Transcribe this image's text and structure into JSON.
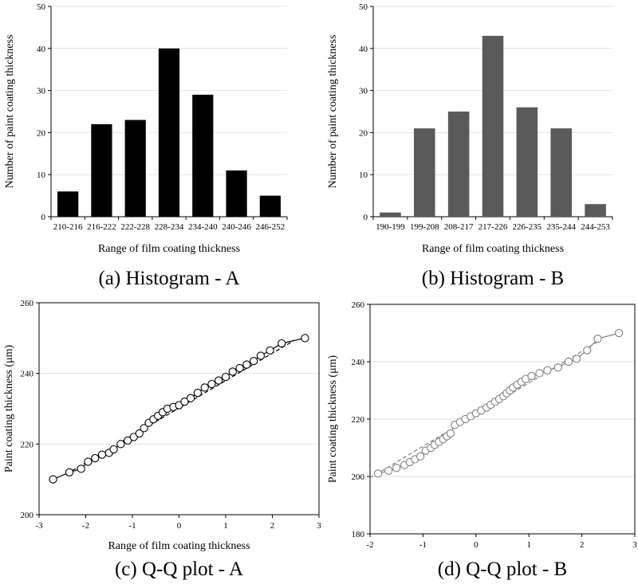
{
  "chart_data": [
    {
      "type": "bar",
      "caption": "(a) Histogram - A",
      "xlabel": "Range of film coating thickness",
      "ylabel": "Number of paint coating thickness",
      "categories": [
        "210-216",
        "216-222",
        "222-228",
        "228-234",
        "234-240",
        "240-246",
        "246-252"
      ],
      "values": [
        6,
        22,
        23,
        40,
        29,
        11,
        5
      ],
      "ylim": [
        0,
        50
      ],
      "yticks": [
        "0",
        "10",
        "20",
        "30",
        "40",
        "50"
      ],
      "grid": true,
      "bar_color": "#000000"
    },
    {
      "type": "bar",
      "caption": "(b) Histogram - B",
      "xlabel": "Range of film coating thickness",
      "ylabel": "Number of paint coating thickness",
      "categories": [
        "190-199",
        "199-208",
        "208-217",
        "217-226",
        "226-235",
        "235-244",
        "244-253"
      ],
      "values": [
        1,
        21,
        25,
        43,
        26,
        21,
        3
      ],
      "ylim": [
        0,
        50
      ],
      "yticks": [
        "0",
        "10",
        "20",
        "30",
        "40",
        "50"
      ],
      "grid": true,
      "bar_color": "#5a5a5a"
    },
    {
      "type": "scatter",
      "caption": "(c) Q-Q plot - A",
      "xlabel": "Range of film coating thickness",
      "ylabel": "Paint coating thickness (μm)",
      "xlim": [
        -3,
        3
      ],
      "ylim": [
        200,
        260
      ],
      "xticks": [
        "-3",
        "-2",
        "-1",
        "0",
        "1",
        "2",
        "3"
      ],
      "yticks": [
        "200",
        "220",
        "240",
        "260"
      ],
      "grid": true,
      "marker_color": "#000000",
      "x": [
        -2.7,
        -2.35,
        -2.1,
        -1.95,
        -1.8,
        -1.65,
        -1.5,
        -1.4,
        -1.25,
        -1.1,
        -0.97,
        -0.85,
        -0.75,
        -0.65,
        -0.55,
        -0.45,
        -0.35,
        -0.25,
        -0.12,
        0.0,
        0.12,
        0.25,
        0.4,
        0.55,
        0.7,
        0.85,
        1.0,
        1.15,
        1.3,
        1.45,
        1.6,
        1.75,
        1.95,
        2.2,
        2.7
      ],
      "y": [
        210,
        212,
        213,
        215,
        216,
        217,
        217.5,
        218.5,
        220,
        221,
        222,
        223,
        224.5,
        226,
        227,
        228,
        229,
        230,
        230.5,
        231,
        232,
        233,
        234.5,
        236,
        237,
        238,
        239,
        240.5,
        241.5,
        242.5,
        243.5,
        245,
        246.5,
        248.5,
        250
      ],
      "fit_line": [
        [
          -2.4,
          211.6
        ],
        [
          2.45,
          249.2
        ]
      ]
    },
    {
      "type": "scatter",
      "caption": "(d) Q-Q plot - B",
      "ylabel": "Paint coating thickness (μm)",
      "xlim": [
        -2,
        3
      ],
      "ylim": [
        180,
        260
      ],
      "xticks": [
        "-2",
        "-1",
        "0",
        "1",
        "2",
        "3"
      ],
      "yticks": [
        "180",
        "200",
        "220",
        "240",
        "260"
      ],
      "grid": true,
      "marker_color": "#808080",
      "x": [
        -1.85,
        -1.65,
        -1.5,
        -1.35,
        -1.25,
        -1.15,
        -1.05,
        -0.95,
        -0.85,
        -0.78,
        -0.7,
        -0.62,
        -0.55,
        -0.48,
        -0.4,
        -0.3,
        -0.2,
        -0.1,
        0.0,
        0.1,
        0.2,
        0.28,
        0.36,
        0.44,
        0.52,
        0.58,
        0.64,
        0.7,
        0.78,
        0.86,
        0.94,
        1.05,
        1.2,
        1.35,
        1.55,
        1.75,
        1.9,
        2.1,
        2.3,
        2.7
      ],
      "y": [
        201,
        202,
        203,
        204,
        205,
        206,
        207,
        209,
        210,
        211,
        212,
        213,
        214,
        215,
        218,
        219,
        220,
        221,
        222,
        223,
        224,
        225,
        226,
        227,
        228,
        229,
        230,
        231,
        232,
        233,
        234,
        235,
        236,
        237,
        238,
        240,
        241,
        244,
        248,
        250
      ],
      "fit_line": [
        [
          -2.0,
          199.5
        ],
        [
          2.35,
          247.5
        ]
      ]
    }
  ]
}
